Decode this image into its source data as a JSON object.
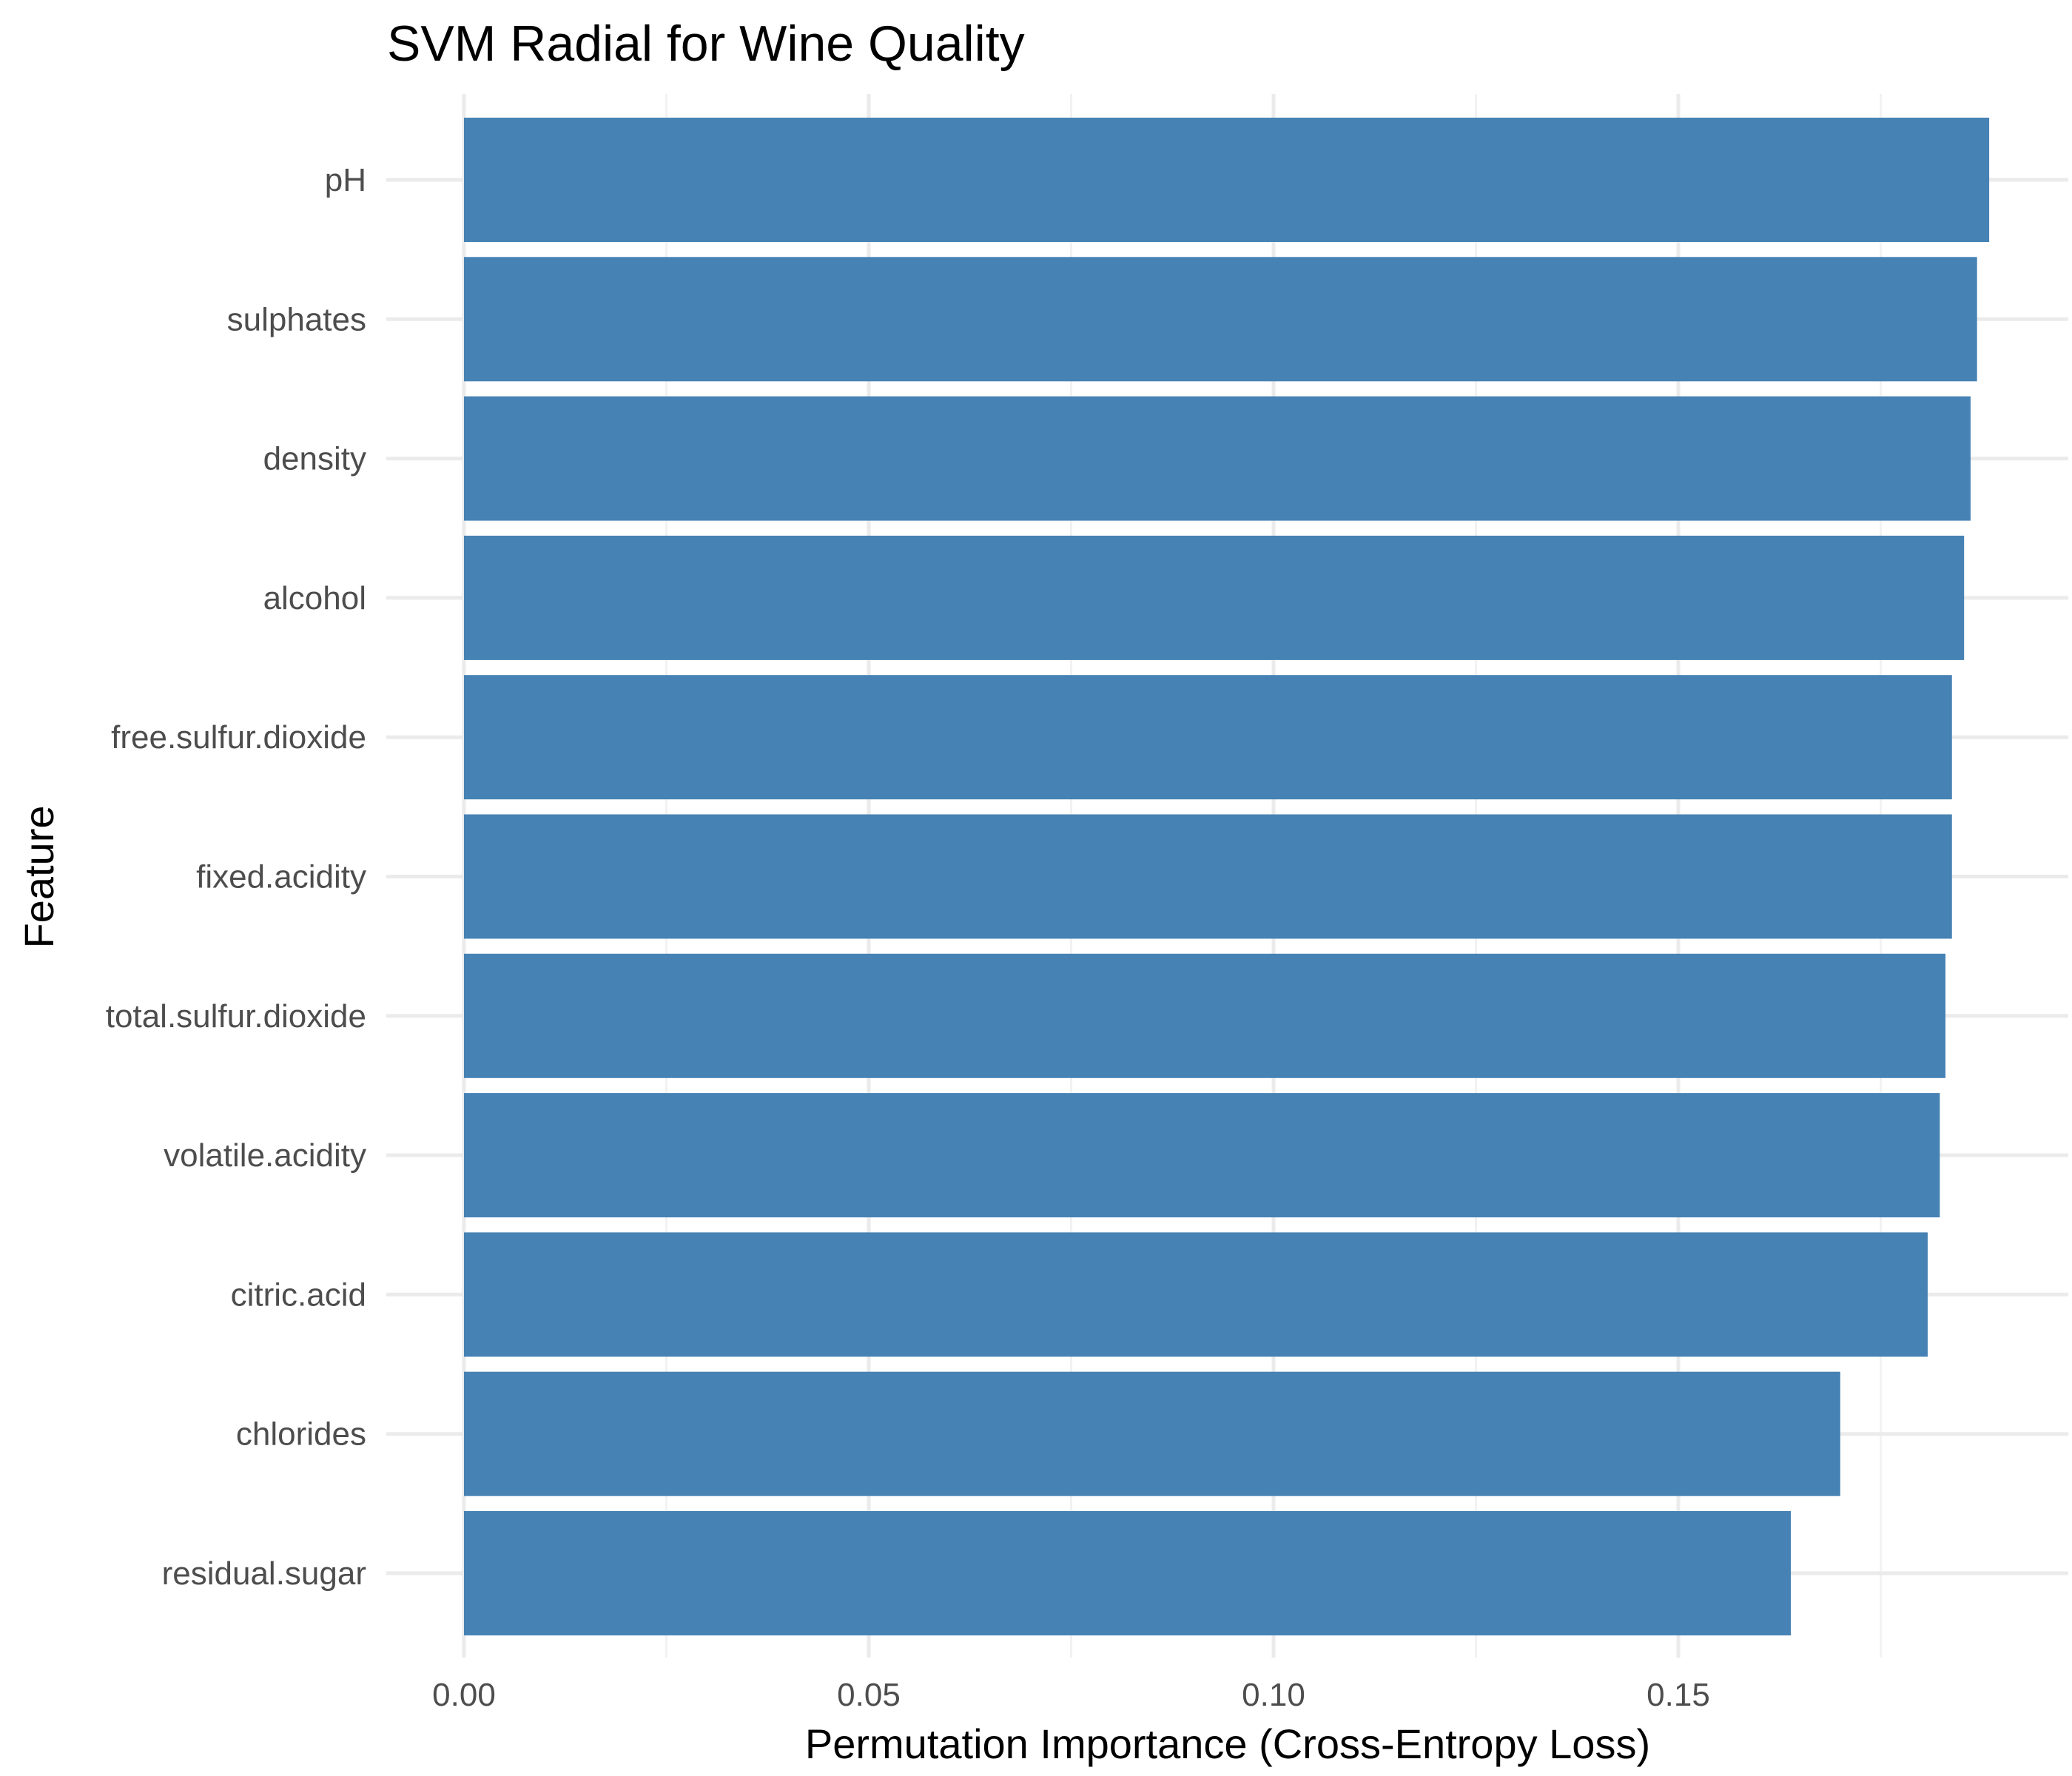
{
  "chart_data": {
    "type": "bar",
    "orientation": "horizontal",
    "title": "SVM Radial for Wine Quality",
    "xlabel": "Permutation Importance (Cross-Entropy Loss)",
    "ylabel": "Feature",
    "categories": [
      "pH",
      "sulphates",
      "density",
      "alcohol",
      "free.sulfur.dioxide",
      "fixed.acidity",
      "total.sulfur.dioxide",
      "volatile.acidity",
      "citric.acid",
      "chlorides",
      "residual.sugar"
    ],
    "values": [
      0.1884,
      0.1869,
      0.1861,
      0.1853,
      0.1838,
      0.1838,
      0.183,
      0.1823,
      0.1808,
      0.17,
      0.1639
    ],
    "xlim": [
      0,
      0.198
    ],
    "x_ticks": [
      0.0,
      0.05,
      0.1,
      0.15
    ],
    "x_tick_labels": [
      "0.00",
      "0.05",
      "0.10",
      "0.15"
    ],
    "grid": true,
    "legend": "none",
    "colors": {
      "bar": "#4682B4",
      "grid_major": "#EBEBEB",
      "grid_minor": "#F2F2F2",
      "tick_label": "#4D4D4D",
      "title": "#000000"
    }
  }
}
